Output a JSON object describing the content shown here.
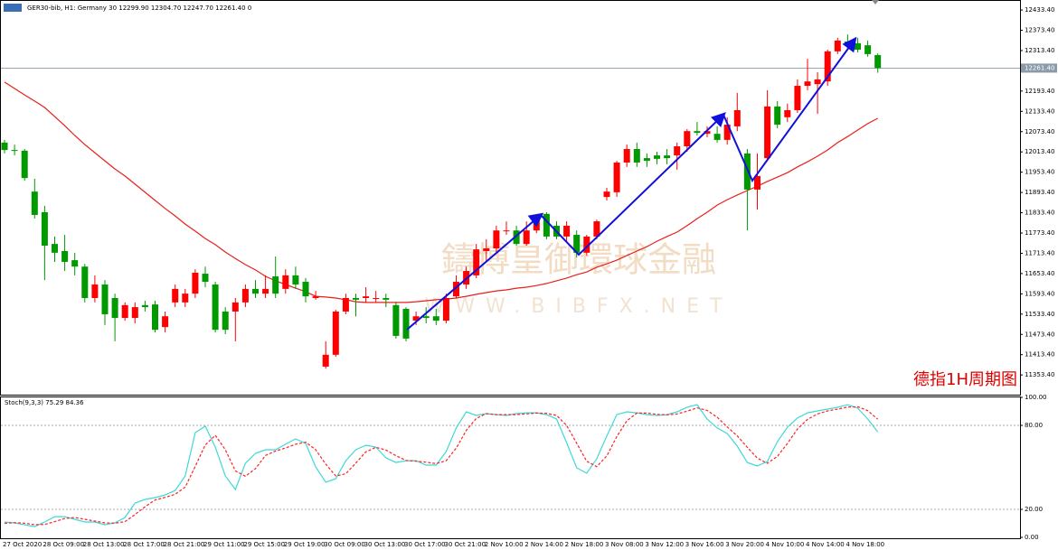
{
  "chart_data": [
    {
      "type": "candlestick",
      "title": "GER30-bib, H1:  Germany 30  12299.90 12304.70 12247.70 12261.40  0",
      "categories": [
        "27 Oct 2020",
        null,
        null,
        null,
        "28 Oct 09:00",
        null,
        null,
        null,
        "28 Oct 13:00",
        null,
        null,
        null,
        "28 Oct 17:00",
        null,
        null,
        null,
        "28 Oct 21:00",
        null,
        null,
        null,
        "29 Oct 11:00",
        null,
        null,
        null,
        "29 Oct 15:00",
        null,
        null,
        null,
        "29 Oct 19:00",
        null,
        null,
        null,
        "30 Oct 09:00",
        null,
        null,
        null,
        "30 Oct 13:00",
        null,
        null,
        null,
        "30 Oct 17:00",
        null,
        null,
        null,
        "30 Oct 21:00",
        null,
        null,
        null,
        "2 Nov 10:00",
        null,
        null,
        null,
        "2 Nov 14:00",
        null,
        null,
        null,
        "2 Nov 18:00",
        null,
        null,
        null,
        "3 Nov 08:00",
        null,
        null,
        null,
        "3 Nov 12:00",
        null,
        null,
        null,
        "3 Nov 16:00",
        null,
        null,
        null,
        "3 Nov 20:00",
        null,
        null,
        null,
        "4 Nov 10:00",
        null,
        null,
        null,
        "4 Nov 14:00",
        null,
        null,
        null,
        "4 Nov 18:00",
        null,
        null,
        null
      ],
      "open": [
        12041,
        12019,
        12017,
        11896,
        11835,
        11741,
        11720,
        11693,
        11674,
        11581,
        11621,
        11581,
        11522,
        11522,
        11560,
        11562,
        11495,
        11568,
        11568,
        11594,
        11653,
        11621,
        11541,
        11541,
        11568,
        11608,
        11594,
        11645,
        11608,
        11648,
        11629,
        11581,
        11378,
        11413,
        11541,
        11581,
        11581,
        11581,
        11581,
        11560,
        11549,
        11514,
        11527,
        11527,
        11514,
        11586,
        11621,
        11648,
        11720,
        11728,
        11781,
        11781,
        11741,
        11781,
        11830,
        11795,
        11763,
        11768,
        11715,
        11763,
        11880,
        11894,
        11982,
        12022,
        11995,
        12003,
        12003,
        12003,
        12030,
        12075,
        12067,
        12067,
        12049,
        12089,
        12009,
        11902,
        11995,
        12148,
        12116,
        12137,
        12209,
        12214,
        12222,
        12311,
        12340,
        12335,
        12329,
        12299.9
      ],
      "high": [
        12049,
        12035,
        12022,
        11934,
        11854,
        11763,
        11768,
        11715,
        11682,
        11648,
        11634,
        11594,
        11568,
        11568,
        11573,
        11573,
        11541,
        11621,
        11608,
        11666,
        11674,
        11629,
        11554,
        11581,
        11621,
        11634,
        11648,
        11704,
        11666,
        11674,
        11640,
        11602,
        11453,
        11546,
        11594,
        11594,
        11613,
        11602,
        11594,
        11570,
        11554,
        11541,
        11554,
        11549,
        11594,
        11648,
        11674,
        11741,
        11755,
        11795,
        11808,
        11795,
        11808,
        11827,
        11835,
        11808,
        11808,
        11781,
        11768,
        11813,
        11907,
        11987,
        12035,
        12041,
        12009,
        12014,
        12022,
        12041,
        12081,
        12102,
        12089,
        12089,
        12116,
        12188,
        12022,
        12009,
        12196,
        12164,
        12156,
        12228,
        12289,
        12249,
        12316,
        12351,
        12361,
        12351,
        12343,
        12304.7
      ],
      "low": [
        12009,
        12003,
        11928,
        11816,
        11634,
        11688,
        11661,
        11648,
        11568,
        11568,
        11501,
        11453,
        11514,
        11506,
        11541,
        11479,
        11479,
        11554,
        11554,
        11581,
        11613,
        11479,
        11474,
        11453,
        11554,
        11581,
        11581,
        11581,
        11594,
        11608,
        11568,
        11576,
        11372,
        11407,
        11533,
        11527,
        11568,
        11568,
        11554,
        11461,
        11453,
        11501,
        11506,
        11501,
        11506,
        11581,
        11608,
        11640,
        11688,
        11715,
        11768,
        11736,
        11736,
        11773,
        11755,
        11755,
        11747,
        11701,
        11707,
        11755,
        11870,
        11880,
        11969,
        11969,
        11969,
        11977,
        11977,
        11961,
        12014,
        12062,
        12057,
        12041,
        12035,
        12075,
        11781,
        11843,
        11987,
        12083,
        12102,
        12129,
        12196,
        12126,
        12209,
        12303,
        12316,
        12308,
        12295,
        12247.7
      ],
      "close": [
        12019,
        12017,
        11936,
        11827,
        11736,
        11715,
        11688,
        11674,
        11581,
        11621,
        11533,
        11522,
        11560,
        11554,
        11554,
        11487,
        11527,
        11608,
        11594,
        11656,
        11629,
        11487,
        11487,
        11568,
        11608,
        11594,
        11608,
        11594,
        11648,
        11621,
        11586,
        11586,
        11413,
        11541,
        11581,
        11576,
        11586,
        11581,
        11576,
        11469,
        11461,
        11527,
        11522,
        11514,
        11581,
        11629,
        11661,
        11725,
        11728,
        11781,
        11781,
        11741,
        11781,
        11822,
        11763,
        11763,
        11795,
        11715,
        11763,
        11808,
        11896,
        11982,
        12022,
        11982,
        11987,
        11993,
        11995,
        12030,
        12075,
        12070,
        12075,
        12049,
        12094,
        12137,
        11902,
        11942,
        12148,
        12094,
        12137,
        12209,
        12222,
        12228,
        12311,
        12343,
        12329,
        12316,
        12303,
        12261.4
      ],
      "up_color": "#ff0000",
      "down_color": "#009900",
      "series": [
        {
          "color": "#e8201a",
          "values": [
            12220,
            12201,
            12182,
            12164,
            12145,
            12118,
            12091,
            12062,
            12035,
            12011,
            11987,
            11963,
            11942,
            11918,
            11894,
            11870,
            11846,
            11824,
            11800,
            11779,
            11757,
            11739,
            11717,
            11698,
            11680,
            11664,
            11645,
            11632,
            11621,
            11610,
            11600,
            11586,
            11584,
            11581,
            11576,
            11570,
            11568,
            11568,
            11568,
            11568,
            11568,
            11570,
            11573,
            11576,
            11578,
            11581,
            11586,
            11592,
            11597,
            11602,
            11605,
            11610,
            11613,
            11618,
            11624,
            11632,
            11640,
            11650,
            11658,
            11672,
            11682,
            11693,
            11707,
            11720,
            11733,
            11749,
            11763,
            11776,
            11795,
            11816,
            11835,
            11856,
            11872,
            11886,
            11899,
            11912,
            11926,
            11939,
            11952,
            11969,
            11984,
            12001,
            12019,
            12041,
            12059,
            12078,
            12097,
            12113
          ]
        }
      ],
      "ylim": [
        11295,
        12463
      ],
      "yticks": [
        {
          "value": 12433.4,
          "label": "12433.40"
        },
        {
          "value": 12373.4,
          "label": "12373.40"
        },
        {
          "value": 12313.4,
          "label": "12313.40"
        },
        {
          "value": 12193.4,
          "label": "12193.40"
        },
        {
          "value": 12133.4,
          "label": "12133.40"
        },
        {
          "value": 12073.4,
          "label": "12073.40"
        },
        {
          "value": 12013.4,
          "label": "12013.40"
        },
        {
          "value": 11953.4,
          "label": "11953.40"
        },
        {
          "value": 11893.4,
          "label": "11893.40"
        },
        {
          "value": 11833.4,
          "label": "11833.40"
        },
        {
          "value": 11773.4,
          "label": "11773.40"
        },
        {
          "value": 11713.4,
          "label": "11713.40"
        },
        {
          "value": 11653.4,
          "label": "11653.40"
        },
        {
          "value": 11593.4,
          "label": "11593.40"
        },
        {
          "value": 11533.4,
          "label": "11533.40"
        },
        {
          "value": 11473.4,
          "label": "11473.40"
        },
        {
          "value": 11413.4,
          "label": "11413.40"
        },
        {
          "value": 11353.4,
          "label": "11353.40"
        }
      ],
      "current_price": {
        "value": 12261.4,
        "label": "12261.40"
      },
      "annotations": [
        "德指1H周期图"
      ],
      "watermark": [
        "鑄博皇御環球金融",
        "WWW.BIBFX.NET"
      ]
    },
    {
      "type": "line",
      "title": "Stoch(9,3,3) 75.29 84.36",
      "ylim": [
        0,
        100
      ],
      "yticks": [
        {
          "value": 100,
          "label": "100.00"
        },
        {
          "value": 80,
          "label": "80.00"
        },
        {
          "value": 20,
          "label": "20.00"
        },
        {
          "value": 0,
          "label": "0.00"
        }
      ],
      "series": [
        {
          "color": "#3fd8d8",
          "dash": false,
          "values": [
            11.0,
            10.3,
            9.0,
            7.7,
            11.0,
            14.8,
            14.8,
            12.9,
            11.0,
            11.0,
            9.0,
            10.3,
            14.2,
            24.5,
            27.1,
            28.4,
            30.3,
            33.5,
            43.9,
            74.8,
            79.4,
            64.5,
            43.9,
            34.2,
            52.9,
            60.0,
            62.6,
            62.6,
            66.5,
            70.3,
            67.1,
            50.3,
            39.4,
            41.9,
            54.8,
            62.6,
            65.8,
            64.5,
            56.8,
            53.5,
            54.8,
            54.8,
            51.6,
            51.6,
            61.3,
            78.1,
            89.7,
            87.1,
            88.4,
            87.7,
            87.1,
            88.4,
            89.0,
            89.0,
            87.7,
            84.5,
            67.7,
            49.7,
            45.8,
            56.1,
            72.3,
            87.7,
            89.7,
            89.0,
            87.7,
            87.1,
            87.7,
            89.7,
            92.9,
            94.8,
            84.5,
            78.1,
            74.2,
            65.2,
            53.5,
            51.0,
            54.2,
            68.4,
            78.7,
            85.2,
            89.0,
            90.3,
            91.6,
            92.9,
            94.8,
            92.3,
            84.5,
            75.29
          ]
        },
        {
          "color": "#ff2020",
          "dash": true,
          "values": [
            10.0,
            10.5,
            10.1,
            9.0,
            9.2,
            11.2,
            13.5,
            14.2,
            12.9,
            11.6,
            10.3,
            10.1,
            11.2,
            16.3,
            21.9,
            26.7,
            28.6,
            30.7,
            35.9,
            50.7,
            66.0,
            72.9,
            62.6,
            47.5,
            43.7,
            49.0,
            58.5,
            61.7,
            63.9,
            66.5,
            68.0,
            62.6,
            52.3,
            43.9,
            45.4,
            53.1,
            61.1,
            64.3,
            62.4,
            58.3,
            55.0,
            54.4,
            53.7,
            52.7,
            54.8,
            63.7,
            76.4,
            85.0,
            88.4,
            87.7,
            87.7,
            87.7,
            88.2,
            88.8,
            88.6,
            87.1,
            80.0,
            67.3,
            54.4,
            50.5,
            58.1,
            72.0,
            83.2,
            88.8,
            88.8,
            87.9,
            87.5,
            88.2,
            90.1,
            92.5,
            90.7,
            85.8,
            78.9,
            72.5,
            64.3,
            56.6,
            52.9,
            57.9,
            67.1,
            77.4,
            84.3,
            88.2,
            90.3,
            91.6,
            93.1,
            93.3,
            90.5,
            84.36
          ]
        }
      ]
    }
  ]
}
